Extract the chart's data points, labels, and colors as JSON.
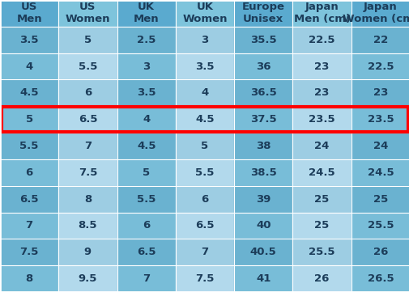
{
  "headers": [
    "US\nMen",
    "US\nWomen",
    "UK\nMen",
    "UK\nWomen",
    "Europe\nUnisex",
    "Japan\nMen (cm)",
    "Japan\nWomen (cm)"
  ],
  "rows": [
    [
      "3.5",
      "5",
      "2.5",
      "3",
      "35.5",
      "22.5",
      "22"
    ],
    [
      "4",
      "5.5",
      "3",
      "3.5",
      "36",
      "23",
      "22.5"
    ],
    [
      "4.5",
      "6",
      "3.5",
      "4",
      "36.5",
      "23",
      "23"
    ],
    [
      "5",
      "6.5",
      "4",
      "4.5",
      "37.5",
      "23.5",
      "23.5"
    ],
    [
      "5.5",
      "7",
      "4.5",
      "5",
      "38",
      "24",
      "24"
    ],
    [
      "6",
      "7.5",
      "5",
      "5.5",
      "38.5",
      "24.5",
      "24.5"
    ],
    [
      "6.5",
      "8",
      "5.5",
      "6",
      "39",
      "25",
      "25"
    ],
    [
      "7",
      "8.5",
      "6",
      "6.5",
      "40",
      "25",
      "25.5"
    ],
    [
      "7.5",
      "9",
      "6.5",
      "7",
      "40.5",
      "25.5",
      "26"
    ],
    [
      "8",
      "9.5",
      "7",
      "7.5",
      "41",
      "26",
      "26.5"
    ]
  ],
  "highlighted_row": 3,
  "header_dark": "#5aaacf",
  "header_light": "#7ec4dc",
  "cell_dark_even": "#6ab2d0",
  "cell_light_even": "#9dcde3",
  "cell_dark_odd": "#78bdd8",
  "cell_light_odd": "#b2d9ec",
  "outer_bg": "#5a9ec0",
  "text_color": "#1c3d5a",
  "font_size": 9.5,
  "header_font_size": 9.5,
  "highlight_rect_color": "red",
  "highlight_lw": 3
}
